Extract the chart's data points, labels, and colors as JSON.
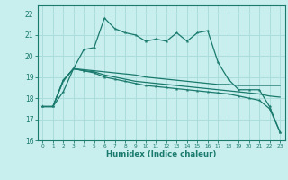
{
  "xlabel": "Humidex (Indice chaleur)",
  "background_color": "#c8eeed",
  "grid_color": "#aadddb",
  "line_color": "#1a7a6e",
  "xlim": [
    -0.5,
    23.5
  ],
  "ylim": [
    16,
    22.4
  ],
  "xticks": [
    0,
    1,
    2,
    3,
    4,
    5,
    6,
    7,
    8,
    9,
    10,
    11,
    12,
    13,
    14,
    15,
    16,
    17,
    18,
    19,
    20,
    21,
    22,
    23
  ],
  "yticks": [
    16,
    17,
    18,
    19,
    20,
    21,
    22
  ],
  "line1_x": [
    0,
    1,
    2,
    3,
    4,
    5,
    6,
    7,
    8,
    9,
    10,
    11,
    12,
    13,
    14,
    15,
    16,
    17,
    18,
    19,
    20,
    21,
    22,
    23
  ],
  "line1_y": [
    17.6,
    17.6,
    18.3,
    19.4,
    20.3,
    20.4,
    21.8,
    21.3,
    21.1,
    21.0,
    20.7,
    20.8,
    20.7,
    21.1,
    20.7,
    21.1,
    21.2,
    19.7,
    18.9,
    18.4,
    18.4,
    18.4,
    17.6,
    16.4
  ],
  "line2_x": [
    0,
    1,
    2,
    3,
    4,
    5,
    6,
    7,
    8,
    9,
    10,
    11,
    12,
    13,
    14,
    15,
    16,
    17,
    18,
    19,
    20,
    21,
    22,
    23
  ],
  "line2_y": [
    17.6,
    17.6,
    18.8,
    19.4,
    19.35,
    19.3,
    19.25,
    19.2,
    19.15,
    19.1,
    19.0,
    18.95,
    18.9,
    18.85,
    18.8,
    18.75,
    18.7,
    18.65,
    18.65,
    18.6,
    18.6,
    18.6,
    18.6,
    18.6
  ],
  "line3_x": [
    0,
    1,
    2,
    3,
    4,
    5,
    6,
    7,
    8,
    9,
    10,
    11,
    12,
    13,
    14,
    15,
    16,
    17,
    18,
    19,
    20,
    21,
    22,
    23
  ],
  "line3_y": [
    17.6,
    17.6,
    18.85,
    19.4,
    19.3,
    19.25,
    19.1,
    19.0,
    18.9,
    18.8,
    18.75,
    18.7,
    18.65,
    18.6,
    18.55,
    18.5,
    18.45,
    18.4,
    18.35,
    18.3,
    18.25,
    18.2,
    18.1,
    18.05
  ],
  "line4_x": [
    0,
    1,
    2,
    3,
    4,
    5,
    6,
    7,
    8,
    9,
    10,
    11,
    12,
    13,
    14,
    15,
    16,
    17,
    18,
    19,
    20,
    21,
    22,
    23
  ],
  "line4_y": [
    17.6,
    17.6,
    18.85,
    19.4,
    19.3,
    19.2,
    19.0,
    18.9,
    18.8,
    18.7,
    18.6,
    18.55,
    18.5,
    18.45,
    18.4,
    18.35,
    18.3,
    18.25,
    18.2,
    18.1,
    18.0,
    17.9,
    17.5,
    16.4
  ]
}
